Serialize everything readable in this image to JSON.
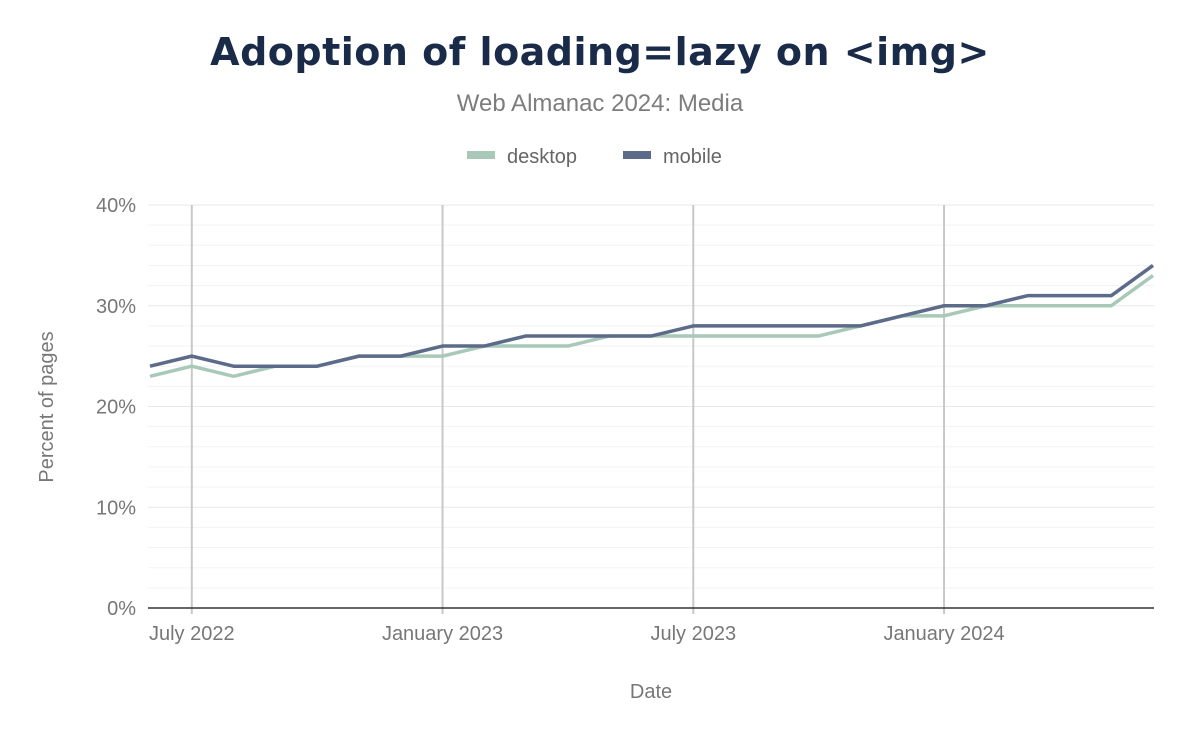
{
  "chart_data": {
    "type": "line",
    "title": "Adoption of loading=lazy on <img>",
    "subtitle": "Web Almanac 2024: Media",
    "xlabel": "Date",
    "ylabel": "Percent of pages",
    "x": [
      "2022-06",
      "2022-07",
      "2022-08",
      "2022-09",
      "2022-10",
      "2022-11",
      "2022-12",
      "2023-01",
      "2023-02",
      "2023-03",
      "2023-04",
      "2023-05",
      "2023-06",
      "2023-07",
      "2023-08",
      "2023-09",
      "2023-10",
      "2023-11",
      "2023-12",
      "2024-01",
      "2024-02",
      "2024-03",
      "2024-04",
      "2024-05",
      "2024-06"
    ],
    "x_ticks": [
      {
        "value": "2022-07",
        "label": "July 2022"
      },
      {
        "value": "2023-01",
        "label": "January 2023"
      },
      {
        "value": "2023-07",
        "label": "July 2023"
      },
      {
        "value": "2024-01",
        "label": "January 2024"
      }
    ],
    "ylim": [
      0,
      40
    ],
    "y_ticks": [
      {
        "value": 0,
        "label": "0%"
      },
      {
        "value": 10,
        "label": "10%"
      },
      {
        "value": 20,
        "label": "20%"
      },
      {
        "value": 30,
        "label": "30%"
      },
      {
        "value": 40,
        "label": "40%"
      }
    ],
    "grid": true,
    "legend_position": "top",
    "series": [
      {
        "name": "desktop",
        "color": "#a8c9b8",
        "values": [
          23,
          24,
          23,
          24,
          24,
          25,
          25,
          25,
          26,
          26,
          26,
          27,
          27,
          27,
          27,
          27,
          27,
          28,
          29,
          29,
          30,
          30,
          30,
          30,
          33
        ]
      },
      {
        "name": "mobile",
        "color": "#5c6b89",
        "values": [
          24,
          25,
          24,
          24,
          24,
          25,
          25,
          26,
          26,
          27,
          27,
          27,
          27,
          28,
          28,
          28,
          28,
          28,
          29,
          30,
          30,
          31,
          31,
          31,
          34
        ]
      }
    ]
  }
}
